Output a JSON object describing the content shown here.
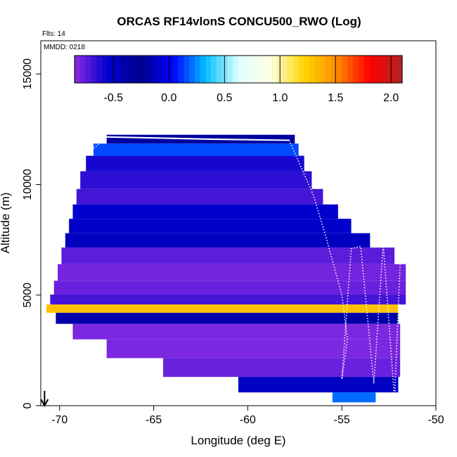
{
  "chart_data": {
    "type": "heatmap",
    "title": "ORCAS RF14vlonS CONCU500_RWO (Log)",
    "flights_label": "Flts: 14",
    "date_label": "MMDD: 0218",
    "xlabel": "Longitude (deg E)",
    "ylabel": "Altitude (m)",
    "xlim": [
      -71,
      -50
    ],
    "ylim": [
      0,
      16500
    ],
    "x_ticks": [
      -70,
      -65,
      -60,
      -55,
      -50
    ],
    "x_tick_labels": [
      "-70",
      "-65",
      "-60",
      "-55",
      "-50"
    ],
    "y_ticks": [
      0,
      5000,
      10000,
      15000
    ],
    "y_tick_labels": [
      "0",
      "5000",
      "10000",
      "15000"
    ],
    "colorbar": {
      "range": [
        -0.85,
        2.1
      ],
      "ticks": [
        -0.5,
        0.0,
        0.5,
        1.0,
        1.5,
        2.0
      ],
      "tick_labels": [
        "-0.5",
        "0.0",
        "0.5",
        "1.0",
        "1.5",
        "2.0"
      ],
      "colors": [
        "#8a2be2",
        "#0000cd",
        "#00008b",
        "#0000ff",
        "#00bfff",
        "#e0ffff",
        "#ffffe0",
        "#ffd700",
        "#ff8c00",
        "#ff0000",
        "#b22222"
      ]
    },
    "arrow_longitude": -70.8,
    "layers": [
      {
        "alt": 12100,
        "lon_min": -67.5,
        "lon_max": -57.5,
        "value": -0.35
      },
      {
        "alt": 11600,
        "lon_min": -68.2,
        "lon_max": -57.3,
        "value": 0.15
      },
      {
        "alt": 11000,
        "lon_min": -68.6,
        "lon_max": -57.0,
        "value": -0.6
      },
      {
        "alt": 10200,
        "lon_min": -68.9,
        "lon_max": -56.6,
        "value": -0.65
      },
      {
        "alt": 9400,
        "lon_min": -69.1,
        "lon_max": -56.0,
        "value": -0.7
      },
      {
        "alt": 8800,
        "lon_min": -69.3,
        "lon_max": -55.2,
        "value": -0.55
      },
      {
        "alt": 8100,
        "lon_min": -69.5,
        "lon_max": -54.5,
        "value": -0.1
      },
      {
        "alt": 7500,
        "lon_min": -69.7,
        "lon_max": -53.5,
        "value": -0.5
      },
      {
        "alt": 6800,
        "lon_min": -69.9,
        "lon_max": -52.2,
        "value": -0.75
      },
      {
        "alt": 6000,
        "lon_min": -70.1,
        "lon_max": -51.6,
        "value": -0.8
      },
      {
        "alt": 5300,
        "lon_min": -70.3,
        "lon_max": -51.6,
        "value": -0.78
      },
      {
        "alt": 4750,
        "lon_min": -70.5,
        "lon_max": -51.6,
        "value": -0.7
      },
      {
        "alt": 4400,
        "lon_min": -70.7,
        "lon_max": -52.0,
        "value": 1.3
      },
      {
        "alt": 4000,
        "lon_min": -70.2,
        "lon_max": -52.0,
        "value": -0.4
      },
      {
        "alt": 3400,
        "lon_min": -69.3,
        "lon_max": -51.9,
        "value": -0.82
      },
      {
        "alt": 2600,
        "lon_min": -67.5,
        "lon_max": -51.9,
        "value": -0.82
      },
      {
        "alt": 1700,
        "lon_min": -64.5,
        "lon_max": -51.9,
        "value": -0.78
      },
      {
        "alt": 900,
        "lon_min": -60.5,
        "lon_max": -52.0,
        "value": -0.5
      },
      {
        "alt": 300,
        "lon_min": -55.5,
        "lon_max": -53.2,
        "value": 0.2
      }
    ],
    "flight_track_solid": [
      [
        -67.5,
        12150
      ],
      [
        -62.0,
        12050
      ],
      [
        -57.8,
        12000
      ]
    ],
    "flight_track_dotted": [
      [
        -68.3,
        11550
      ],
      [
        -67.5,
        12150
      ],
      [
        -57.8,
        12000
      ],
      [
        -56.5,
        9500
      ],
      [
        -55.8,
        7500
      ],
      [
        -55.0,
        5000
      ],
      [
        -54.7,
        3000
      ],
      [
        -55.0,
        1200
      ],
      [
        -54.5,
        7100
      ],
      [
        -54.0,
        7200
      ],
      [
        -53.3,
        1000
      ],
      [
        -52.8,
        7300
      ],
      [
        -52.2,
        300
      ],
      [
        -51.9,
        6500
      ]
    ]
  }
}
